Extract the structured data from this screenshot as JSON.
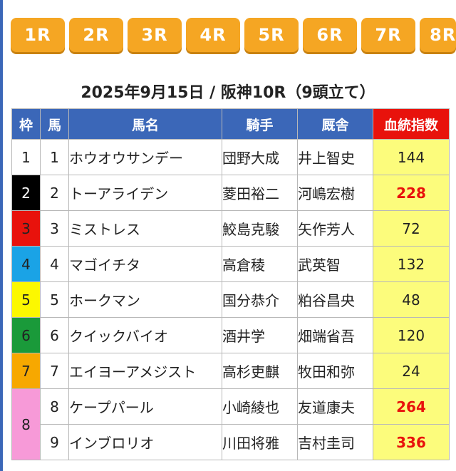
{
  "race_tabs": [
    "1R",
    "2R",
    "3R",
    "4R",
    "5R",
    "6R",
    "7R",
    "8R"
  ],
  "race_title": "2025年9月15日 / 阪神10R（9頭立て）",
  "table": {
    "headers": {
      "waku": "枠",
      "uma": "馬",
      "name": "馬名",
      "jockey": "騎手",
      "trainer": "厩舎",
      "index": "血統指数"
    },
    "rows": [
      {
        "waku": "1",
        "uma": "1",
        "name": "ホウオウサンデー",
        "jockey": "団野大成",
        "trainer": "井上智史",
        "index": "144",
        "highlight": false
      },
      {
        "waku": "2",
        "uma": "2",
        "name": "トーアライデン",
        "jockey": "菱田裕二",
        "trainer": "河嶋宏樹",
        "index": "228",
        "highlight": true
      },
      {
        "waku": "3",
        "uma": "3",
        "name": "ミストレス",
        "jockey": "鮫島克駿",
        "trainer": "矢作芳人",
        "index": "72",
        "highlight": false
      },
      {
        "waku": "4",
        "uma": "4",
        "name": "マゴイチタ",
        "jockey": "高倉稜",
        "trainer": "武英智",
        "index": "132",
        "highlight": false
      },
      {
        "waku": "5",
        "uma": "5",
        "name": "ホークマン",
        "jockey": "国分恭介",
        "trainer": "粕谷昌央",
        "index": "48",
        "highlight": false
      },
      {
        "waku": "6",
        "uma": "6",
        "name": "クイックバイオ",
        "jockey": "酒井学",
        "trainer": "畑端省吾",
        "index": "120",
        "highlight": false
      },
      {
        "waku": "7",
        "uma": "7",
        "name": "エイヨーアメジスト",
        "jockey": "高杉吏麒",
        "trainer": "牧田和弥",
        "index": "24",
        "highlight": false
      },
      {
        "waku": "8",
        "uma": "8",
        "name": "ケープパール",
        "jockey": "小崎綾也",
        "trainer": "友道康夫",
        "index": "264",
        "highlight": true
      },
      {
        "waku": "",
        "uma": "9",
        "name": "インブロリオ",
        "jockey": "川田将雅",
        "trainer": "吉村圭司",
        "index": "336",
        "highlight": true
      }
    ]
  },
  "colors": {
    "tab_bg": "#f5a623",
    "header_bg": "#3b67b8",
    "index_header_bg": "#e8120c",
    "index_cell_bg": "#fcfc7c",
    "high_index_text": "#e8120c",
    "waku_colors": [
      "#ffffff",
      "#000000",
      "#e8120c",
      "#1aa3e6",
      "#fcf800",
      "#1a9a3a",
      "#f7a800",
      "#f79ad8"
    ]
  }
}
